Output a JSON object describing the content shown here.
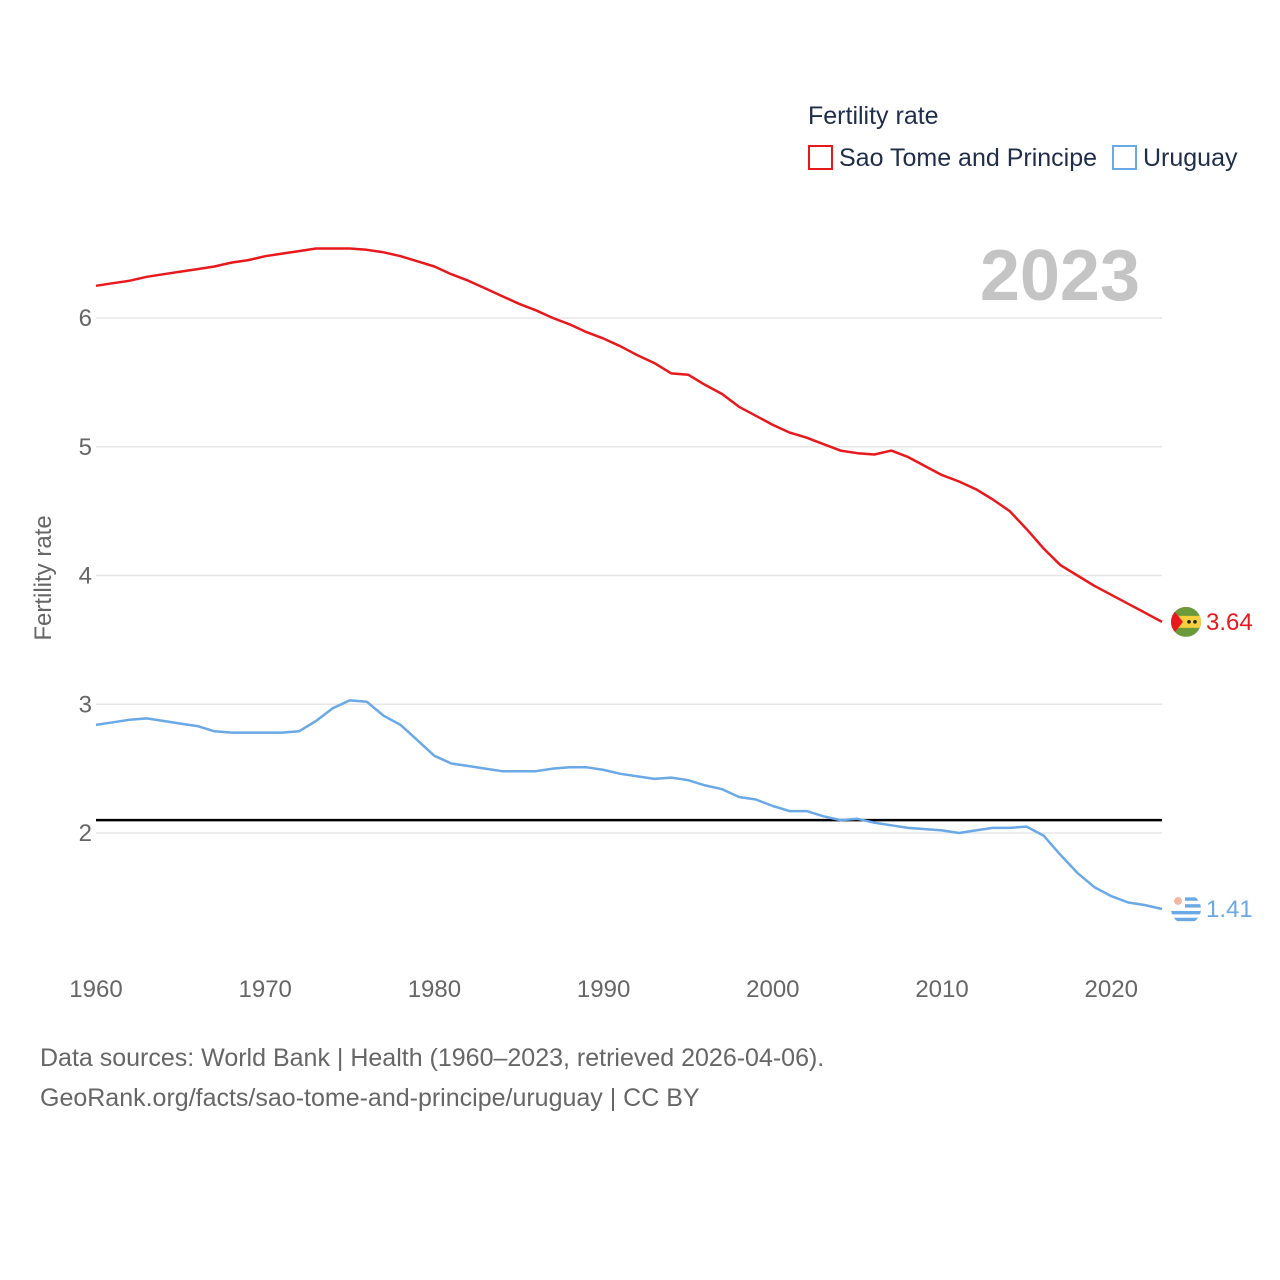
{
  "chart_data": {
    "type": "line",
    "legend_title": "Fertility rate",
    "year_label": "2023",
    "ylabel": "Fertility rate",
    "xlim": [
      1960,
      2023
    ],
    "ylim": [
      1.0,
      6.8
    ],
    "x_ticks": [
      1960,
      1970,
      1980,
      1990,
      2000,
      2010,
      2020
    ],
    "y_ticks": [
      2,
      3,
      4,
      5,
      6
    ],
    "reference_line": {
      "y": 2.1,
      "color": "#000000"
    },
    "series": [
      {
        "name": "Sao Tome and Principe",
        "color": "#e8191d",
        "end_label": "3.64",
        "x": [
          1960,
          1961,
          1962,
          1963,
          1964,
          1965,
          1966,
          1967,
          1968,
          1969,
          1970,
          1971,
          1972,
          1973,
          1974,
          1975,
          1976,
          1977,
          1978,
          1979,
          1980,
          1981,
          1982,
          1983,
          1984,
          1985,
          1986,
          1987,
          1988,
          1989,
          1990,
          1991,
          1992,
          1993,
          1994,
          1995,
          1996,
          1997,
          1998,
          1999,
          2000,
          2001,
          2002,
          2003,
          2004,
          2005,
          2006,
          2007,
          2008,
          2009,
          2010,
          2011,
          2012,
          2013,
          2014,
          2015,
          2016,
          2017,
          2018,
          2019,
          2020,
          2021,
          2022,
          2023
        ],
        "values": [
          6.25,
          6.27,
          6.29,
          6.32,
          6.34,
          6.36,
          6.38,
          6.4,
          6.43,
          6.45,
          6.48,
          6.5,
          6.52,
          6.54,
          6.54,
          6.54,
          6.53,
          6.51,
          6.48,
          6.44,
          6.4,
          6.34,
          6.29,
          6.23,
          6.17,
          6.11,
          6.06,
          6.0,
          5.95,
          5.89,
          5.84,
          5.78,
          5.71,
          5.65,
          5.57,
          5.56,
          5.48,
          5.41,
          5.31,
          5.24,
          5.17,
          5.11,
          5.07,
          5.02,
          4.97,
          4.95,
          4.94,
          4.97,
          4.92,
          4.85,
          4.78,
          4.73,
          4.67,
          4.59,
          4.5,
          4.36,
          4.21,
          4.08,
          4.0,
          3.92,
          3.85,
          3.78,
          3.71,
          3.64
        ]
      },
      {
        "name": "Uruguay",
        "color": "#6aa8e6",
        "end_label": "1.41",
        "x": [
          1960,
          1961,
          1962,
          1963,
          1964,
          1965,
          1966,
          1967,
          1968,
          1969,
          1970,
          1971,
          1972,
          1973,
          1974,
          1975,
          1976,
          1977,
          1978,
          1979,
          1980,
          1981,
          1982,
          1983,
          1984,
          1985,
          1986,
          1987,
          1988,
          1989,
          1990,
          1991,
          1992,
          1993,
          1994,
          1995,
          1996,
          1997,
          1998,
          1999,
          2000,
          2001,
          2002,
          2003,
          2004,
          2005,
          2006,
          2007,
          2008,
          2009,
          2010,
          2011,
          2012,
          2013,
          2014,
          2015,
          2016,
          2017,
          2018,
          2019,
          2020,
          2021,
          2022,
          2023
        ],
        "values": [
          2.84,
          2.86,
          2.88,
          2.89,
          2.87,
          2.85,
          2.83,
          2.79,
          2.78,
          2.78,
          2.78,
          2.78,
          2.79,
          2.87,
          2.97,
          3.03,
          3.02,
          2.91,
          2.84,
          2.72,
          2.6,
          2.54,
          2.52,
          2.5,
          2.48,
          2.48,
          2.48,
          2.5,
          2.51,
          2.51,
          2.49,
          2.46,
          2.44,
          2.42,
          2.43,
          2.41,
          2.37,
          2.34,
          2.28,
          2.26,
          2.21,
          2.17,
          2.17,
          2.13,
          2.1,
          2.11,
          2.08,
          2.06,
          2.04,
          2.03,
          2.02,
          2.0,
          2.02,
          2.04,
          2.04,
          2.05,
          1.98,
          1.83,
          1.69,
          1.58,
          1.51,
          1.46,
          1.44,
          1.41
        ]
      }
    ]
  },
  "footer": {
    "line1": "Data sources: World Bank | Health (1960–2023, retrieved 2026-04-06).",
    "line2": "GeoRank.org/facts/sao-tome-and-principe/uruguay | CC BY"
  }
}
